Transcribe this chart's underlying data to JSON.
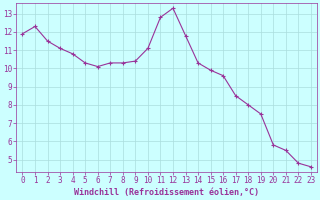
{
  "x": [
    0,
    1,
    2,
    3,
    4,
    5,
    6,
    7,
    8,
    9,
    10,
    11,
    12,
    13,
    14,
    15,
    16,
    17,
    18,
    19,
    20,
    21,
    22,
    23
  ],
  "y": [
    11.9,
    12.3,
    11.5,
    11.1,
    10.8,
    10.3,
    10.1,
    10.3,
    10.3,
    10.4,
    11.1,
    12.8,
    13.3,
    11.8,
    10.3,
    9.9,
    9.6,
    8.5,
    8.0,
    7.5,
    5.8,
    5.5,
    4.8,
    4.6
  ],
  "line_color": "#993399",
  "marker": "+",
  "marker_size": 3,
  "bg_color": "#ccffff",
  "grid_color": "#aadddd",
  "xlabel": "Windchill (Refroidissement éolien,°C)",
  "xlabel_color": "#993399",
  "tick_color": "#993399",
  "ylim": [
    4.3,
    13.6
  ],
  "xlim": [
    -0.5,
    23.5
  ],
  "yticks": [
    5,
    6,
    7,
    8,
    9,
    10,
    11,
    12,
    13
  ],
  "xticks": [
    0,
    1,
    2,
    3,
    4,
    5,
    6,
    7,
    8,
    9,
    10,
    11,
    12,
    13,
    14,
    15,
    16,
    17,
    18,
    19,
    20,
    21,
    22,
    23
  ],
  "tick_fontsize": 5.5,
  "xlabel_fontsize": 6.0
}
